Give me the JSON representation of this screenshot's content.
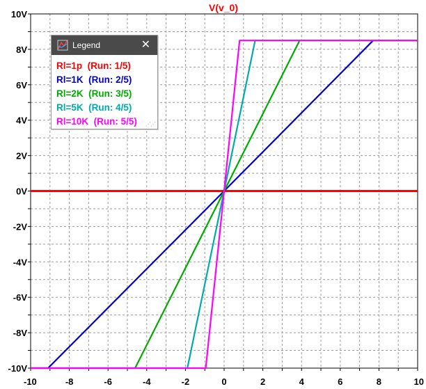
{
  "chart_data": {
    "type": "line",
    "title": "V(v_0)",
    "title_color": "#ff0000",
    "x": [
      -10,
      -9,
      -8,
      -7,
      -6,
      -5,
      -4,
      -3,
      -2,
      -1,
      0,
      1,
      2,
      3,
      4,
      5,
      6,
      7,
      8,
      9,
      10
    ],
    "xlim": [
      -10,
      10
    ],
    "ylim": [
      -10,
      10
    ],
    "x_ticks": [
      -10,
      -8,
      -6,
      -4,
      -2,
      0,
      2,
      4,
      6,
      8,
      10
    ],
    "x_tick_labels": [
      "-10",
      "-8",
      "-6",
      "-4",
      "-2",
      "0",
      "2",
      "4",
      "6",
      "8",
      "10"
    ],
    "y_ticks": [
      10,
      8,
      6,
      4,
      2,
      0,
      -2,
      -4,
      -6,
      -8,
      -10
    ],
    "y_tick_labels": [
      "10V",
      "8V",
      "6V",
      "4V",
      "2V",
      "0V",
      "-2V",
      "-4V",
      "-6V",
      "-8V",
      "-10V"
    ],
    "grid": true,
    "legend": "top-left",
    "series": [
      {
        "name": "Rl=1p  (Run: 1/5)",
        "color": "#ff0000",
        "points": [
          [
            -10,
            0
          ],
          [
            10,
            0
          ]
        ]
      },
      {
        "name": "Rl=1K  (Run: 2/5)",
        "color": "#0000cc",
        "points": [
          [
            -10,
            -10
          ],
          [
            -9.1,
            -10
          ],
          [
            0,
            0
          ],
          [
            7.7,
            8.5
          ],
          [
            10,
            8.5
          ]
        ]
      },
      {
        "name": "Rl=2K  (Run: 3/5)",
        "color": "#00aa00",
        "points": [
          [
            -10,
            -10
          ],
          [
            -4.6,
            -10
          ],
          [
            0,
            0
          ],
          [
            3.9,
            8.5
          ],
          [
            10,
            8.5
          ]
        ]
      },
      {
        "name": "Rl=5K  (Run: 4/5)",
        "color": "#00aaaa",
        "points": [
          [
            -10,
            -10
          ],
          [
            -1.9,
            -10
          ],
          [
            0,
            0
          ],
          [
            1.6,
            8.5
          ],
          [
            10,
            8.5
          ]
        ]
      },
      {
        "name": "Rl=10K  (Run: 5/5)",
        "color": "#ff00ff",
        "points": [
          [
            -10,
            -10
          ],
          [
            -0.95,
            -10
          ],
          [
            0,
            0
          ],
          [
            0.8,
            8.5
          ],
          [
            10,
            8.5
          ]
        ]
      }
    ]
  },
  "legend": {
    "title": "Legend",
    "close_glyph": "✕",
    "grip_glyph": "⋰⋰",
    "icon": "chart-legend-icon"
  }
}
